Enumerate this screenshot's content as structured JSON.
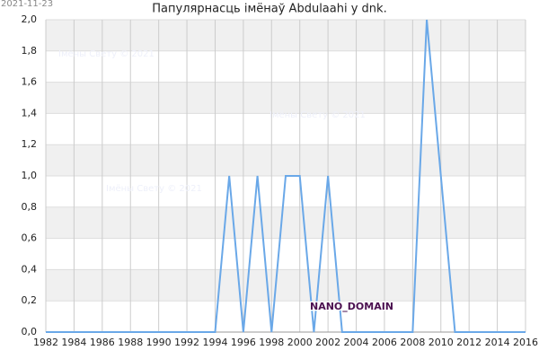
{
  "chart_data": {
    "type": "line",
    "title": "Папулярнасць імёнаў Abdulaahi у dnk.",
    "date": "2021-11-23",
    "watermarks": [
      "Імёны Свету © 2021",
      "Імёны Свету © 2021",
      "Імёны Свету © 2021"
    ],
    "badge": "NANO_DOMAIN",
    "x": [
      1982,
      1983,
      1984,
      1985,
      1986,
      1987,
      1988,
      1989,
      1990,
      1991,
      1992,
      1993,
      1994,
      1995,
      1996,
      1997,
      1998,
      1999,
      2000,
      2001,
      2002,
      2003,
      2004,
      2005,
      2006,
      2007,
      2008,
      2009,
      2010,
      2011,
      2012,
      2013,
      2014,
      2015,
      2016
    ],
    "series": [
      {
        "color": "#6aa8e8",
        "values": [
          0,
          0,
          0,
          0,
          0,
          0,
          0,
          0,
          0,
          0,
          0,
          0,
          0,
          1,
          0,
          1,
          0,
          1,
          1,
          0,
          1,
          0,
          0,
          0,
          0,
          0,
          0,
          2,
          1,
          0,
          0,
          0,
          0,
          0,
          0
        ]
      }
    ],
    "xlim": [
      1982,
      2016
    ],
    "xticks": [
      1982,
      1984,
      1986,
      1988,
      1990,
      1992,
      1994,
      1996,
      1998,
      2000,
      2002,
      2004,
      2006,
      2008,
      2010,
      2012,
      2014,
      2016
    ],
    "ylim": [
      0,
      2
    ],
    "yticks": [
      {
        "value": 0,
        "label": "0,0"
      },
      {
        "value": 0.2,
        "label": "0,2"
      },
      {
        "value": 0.4,
        "label": "0,4"
      },
      {
        "value": 0.6,
        "label": "0,6"
      },
      {
        "value": 0.8,
        "label": "0,8"
      },
      {
        "value": 1,
        "label": "1,0"
      },
      {
        "value": 1.2,
        "label": "1,2"
      },
      {
        "value": 1.4,
        "label": "1,4"
      },
      {
        "value": 1.6,
        "label": "1,6"
      },
      {
        "value": 1.8,
        "label": "1,8"
      },
      {
        "value": 2,
        "label": "2,0"
      }
    ],
    "grid": true
  }
}
